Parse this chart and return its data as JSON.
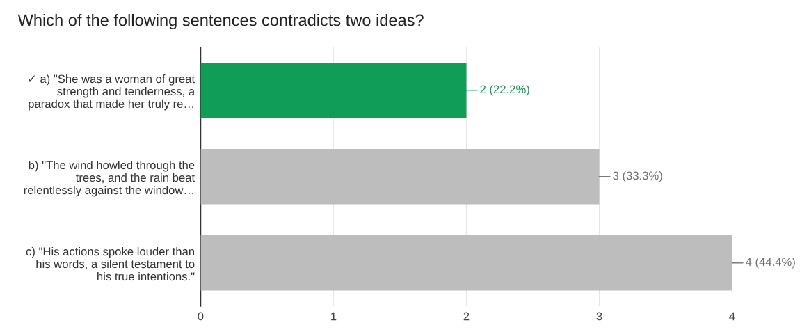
{
  "chart_data": {
    "type": "bar",
    "orientation": "horizontal",
    "title": "Which of the following sentences contradicts two ideas?",
    "categories": [
      "✓ a) \"She was a woman of great\nstrength and tenderness, a\nparadox that made her truly re…",
      "b) \"The wind howled through the\ntrees, and the rain beat\nrelentlessly against the window…",
      "c) \"His actions spoke louder than\nhis words, a silent testament to\nhis true intentions.\""
    ],
    "values": [
      2,
      3,
      4
    ],
    "colors": [
      "#0f9d58",
      "#bdbdbd",
      "#bdbdbd"
    ],
    "value_labels": [
      "2 (22.2%)",
      "3 (33.3%)",
      "4 (44.4%)"
    ],
    "xlim": [
      0,
      4
    ],
    "xticks": [
      0,
      1,
      2,
      3,
      4
    ],
    "grid": "x"
  }
}
